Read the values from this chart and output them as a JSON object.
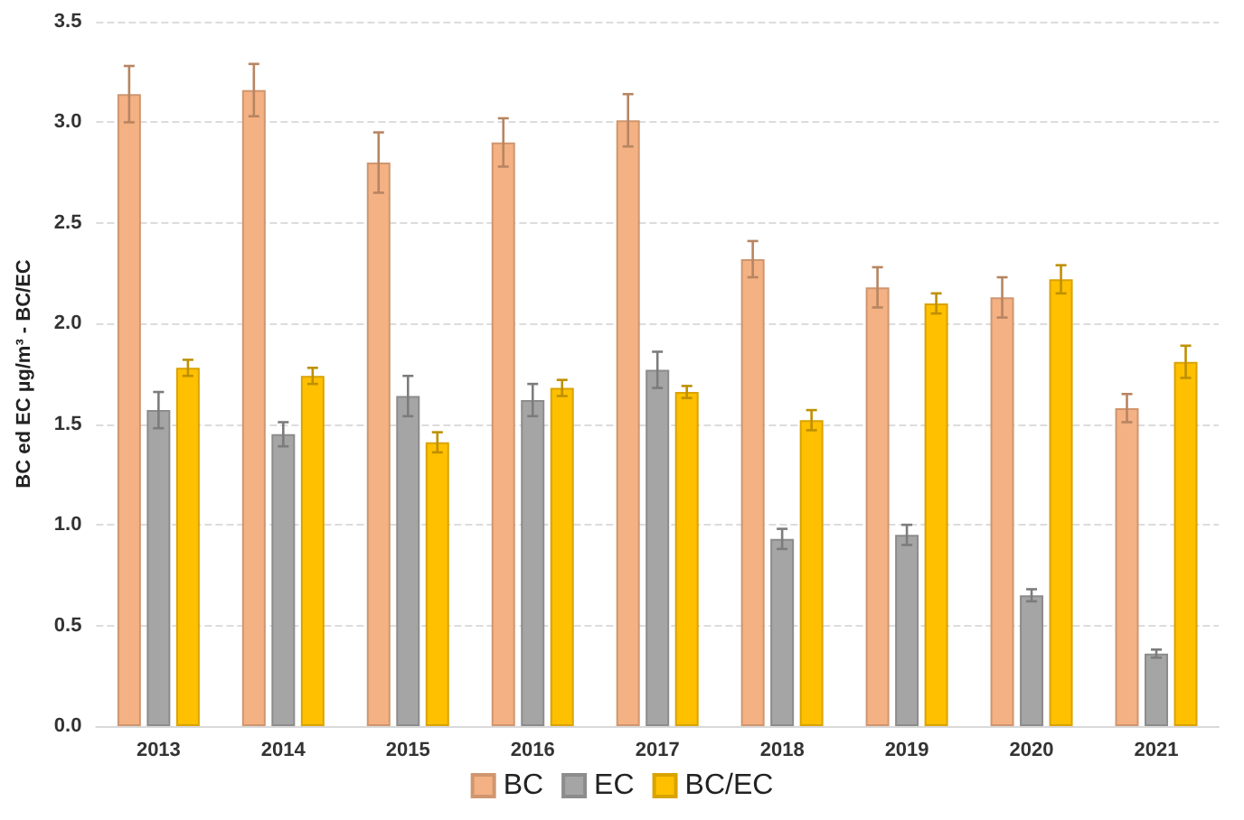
{
  "chart_data": {
    "type": "bar",
    "ylabel": "BC ed EC µg/m³ - BC/EC",
    "categories": [
      "2013",
      "2014",
      "2015",
      "2016",
      "2017",
      "2018",
      "2019",
      "2020",
      "2021"
    ],
    "series": [
      {
        "name": "BC",
        "color": "#f4b183",
        "values": [
          3.14,
          3.16,
          2.8,
          2.9,
          3.01,
          2.32,
          2.18,
          2.13,
          1.58
        ],
        "errors": [
          0.14,
          0.13,
          0.15,
          0.12,
          0.13,
          0.09,
          0.1,
          0.1,
          0.07
        ]
      },
      {
        "name": "EC",
        "color": "#a5a5a5",
        "values": [
          1.57,
          1.45,
          1.64,
          1.62,
          1.77,
          0.93,
          0.95,
          0.65,
          0.36
        ],
        "errors": [
          0.09,
          0.06,
          0.1,
          0.08,
          0.09,
          0.05,
          0.05,
          0.03,
          0.02
        ]
      },
      {
        "name": "BC/EC",
        "color": "#ffc000",
        "values": [
          1.78,
          1.74,
          1.41,
          1.68,
          1.66,
          1.52,
          2.1,
          2.22,
          1.81
        ],
        "errors": [
          0.04,
          0.04,
          0.05,
          0.04,
          0.03,
          0.05,
          0.05,
          0.07,
          0.08
        ]
      }
    ],
    "ylim": [
      0,
      3.5
    ],
    "yticks": [
      {
        "value": 0,
        "label": "0.0"
      },
      0.5,
      {
        "value": 1,
        "label": "1.0"
      },
      1.5,
      {
        "value": 2,
        "label": "2.0"
      },
      2.5,
      {
        "value": 3,
        "label": "3.0"
      },
      3.5
    ],
    "grid": "y",
    "legend": "bottom"
  }
}
